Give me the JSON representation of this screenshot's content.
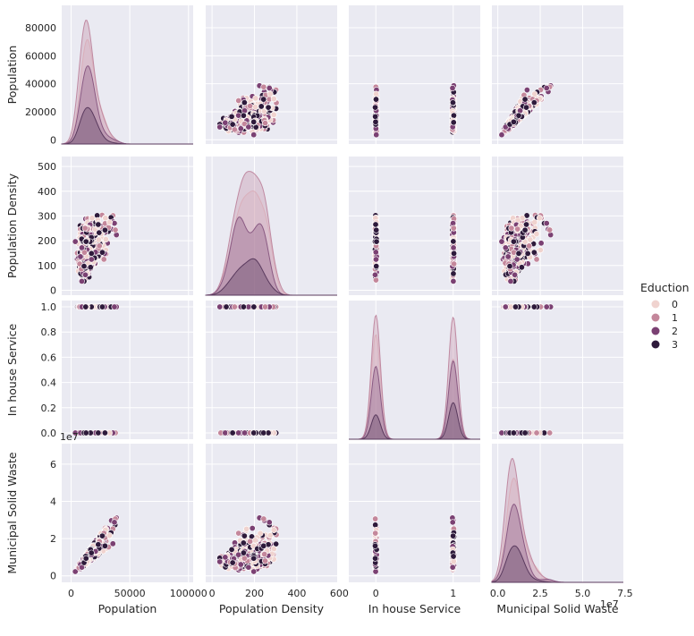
{
  "chart_data": {
    "type": "pairplot",
    "variables": [
      "Population",
      "Population Density",
      "In house Service",
      "Municipal Solid Waste"
    ],
    "hue": {
      "title": "Eduction",
      "levels": [
        "0",
        "1",
        "2",
        "3"
      ],
      "colors": [
        "#f0d3cf",
        "#c4879b",
        "#7b4173",
        "#2e1a3b"
      ],
      "density_colors": [
        "#e8c4c8",
        "#c08aa2",
        "#8a5a83",
        "#5a3a5e"
      ]
    },
    "axes": {
      "Population": {
        "range": [
          -8000,
          104000
        ],
        "ticks": [
          0,
          50000,
          100000
        ],
        "tick_labels": [
          "0",
          "50000",
          "100000"
        ],
        "y_range": [
          -3000,
          96000
        ],
        "y_ticks": [
          0,
          20000,
          40000,
          60000,
          80000
        ],
        "y_tick_labels": [
          "0",
          "20000",
          "40000",
          "60000",
          "80000"
        ]
      },
      "Population Density": {
        "range": [
          -30,
          590
        ],
        "ticks": [
          0,
          200,
          400,
          600
        ],
        "tick_labels": [
          "0",
          "200",
          "400",
          "600"
        ],
        "y_range": [
          -20,
          540
        ],
        "y_ticks": [
          0,
          100,
          200,
          300,
          400,
          500
        ],
        "y_tick_labels": [
          "0",
          "100",
          "200",
          "300",
          "400",
          "500"
        ]
      },
      "In house Service": {
        "range": [
          -0.35,
          1.35
        ],
        "ticks": [
          0,
          1
        ],
        "tick_labels": [
          "0",
          "1"
        ],
        "y_range": [
          -0.05,
          1.05
        ],
        "y_ticks": [
          0.0,
          0.2,
          0.4,
          0.6,
          0.8,
          1.0
        ],
        "y_tick_labels": [
          "0.0",
          "0.2",
          "0.4",
          "0.6",
          "0.8",
          "1.0"
        ]
      },
      "Municipal Solid Waste": {
        "range": [
          -3.5,
          74
        ],
        "ticks": [
          0,
          25,
          50,
          75
        ],
        "tick_labels": [
          "0.0",
          "2.5",
          "5.0",
          "7.5"
        ],
        "y_range": [
          -3.5,
          71
        ],
        "y_ticks": [
          0,
          20,
          40,
          60
        ],
        "y_tick_labels": [
          "0",
          "2",
          "4",
          "6"
        ],
        "offset": "1e7"
      }
    }
  }
}
